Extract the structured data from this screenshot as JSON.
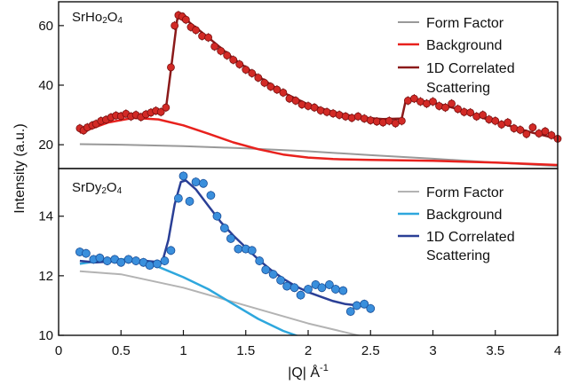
{
  "chart_data": {
    "type": "scatter",
    "xlabel_main": "|Q| Å",
    "xlabel_exp": "-1",
    "ylabel": "Intensity (a.u.)",
    "xlim": [
      0,
      4
    ],
    "x_ticks": [
      0,
      0.5,
      1,
      1.5,
      2,
      2.5,
      3,
      3.5,
      4
    ],
    "x_tick_labels": [
      "0",
      "0.5",
      "1",
      "1.5",
      "2",
      "2.5",
      "3",
      "3.5",
      "4"
    ],
    "panels": [
      {
        "label_main": "SrHo",
        "label_sub1": "2",
        "label_mid": "O",
        "label_sub2": "4",
        "ylim": [
          12,
          68
        ],
        "y_ticks": [
          20,
          40,
          60
        ],
        "y_tick_labels": [
          "20",
          "40",
          "60"
        ],
        "legend": [
          "Form Factor",
          "Background",
          "1D Correlated",
          "Scattering"
        ],
        "colors": {
          "form_factor": "#999999",
          "background": "#e8211d",
          "fit": "#8b1a1a",
          "points_fill": "#d22a26",
          "points_stroke": "#7a0f0f"
        },
        "series": [
          {
            "name": "Form Factor",
            "x": [
              0.17,
              0.5,
              1.0,
              1.5,
              2.0,
              2.5,
              3.0,
              3.5,
              4.0
            ],
            "y": [
              20.2,
              20.0,
              19.5,
              18.8,
              17.8,
              16.5,
              15.3,
              14.0,
              12.8
            ]
          },
          {
            "name": "Background",
            "x": [
              0.17,
              0.4,
              0.6,
              0.8,
              1.0,
              1.2,
              1.4,
              1.6,
              1.8,
              2.0,
              2.2,
              2.5,
              3.0,
              3.5,
              4.0
            ],
            "y": [
              24.0,
              27.5,
              29.0,
              28.5,
              26.5,
              23.7,
              20.8,
              18.5,
              16.7,
              15.7,
              15.2,
              14.9,
              14.6,
              14.0,
              13.2
            ]
          },
          {
            "name": "1D Correlated Scattering",
            "x": [
              0.17,
              0.3,
              0.5,
              0.7,
              0.8,
              0.86,
              0.9,
              0.95,
              1.0,
              1.05,
              1.2,
              1.4,
              1.6,
              1.8,
              2.0,
              2.2,
              2.4,
              2.6,
              2.75,
              2.78,
              2.85,
              3.0,
              3.2,
              3.4,
              3.6,
              3.8,
              4.0
            ],
            "y": [
              25.0,
              27.5,
              29.5,
              30.0,
              31.0,
              32.0,
              45.0,
              62.0,
              64.0,
              61.0,
              56.0,
              49.0,
              43.0,
              37.5,
              33.5,
              31.0,
              29.2,
              28.6,
              28.8,
              34.5,
              35.0,
              34.2,
              32.0,
              29.0,
              26.5,
              24.0,
              22.0
            ]
          },
          {
            "name": "data",
            "x": [
              0.17,
              0.2,
              0.23,
              0.27,
              0.3,
              0.34,
              0.38,
              0.42,
              0.46,
              0.5,
              0.54,
              0.58,
              0.62,
              0.66,
              0.7,
              0.74,
              0.78,
              0.82,
              0.86,
              0.9,
              0.93,
              0.96,
              0.99,
              1.02,
              1.06,
              1.1,
              1.15,
              1.2,
              1.25,
              1.3,
              1.35,
              1.4,
              1.45,
              1.5,
              1.55,
              1.6,
              1.65,
              1.7,
              1.75,
              1.8,
              1.85,
              1.9,
              1.95,
              2.0,
              2.05,
              2.1,
              2.15,
              2.2,
              2.25,
              2.3,
              2.35,
              2.4,
              2.45,
              2.5,
              2.55,
              2.6,
              2.65,
              2.7,
              2.75,
              2.8,
              2.85,
              2.9,
              2.95,
              3.0,
              3.05,
              3.1,
              3.15,
              3.2,
              3.25,
              3.3,
              3.35,
              3.4,
              3.45,
              3.5,
              3.55,
              3.6,
              3.65,
              3.7,
              3.75,
              3.8,
              3.85,
              3.9,
              3.95,
              4.0
            ],
            "y": [
              25.5,
              24.8,
              25.8,
              26.5,
              27.0,
              28.0,
              28.4,
              29.2,
              29.8,
              29.6,
              30.4,
              29.5,
              30.0,
              29.3,
              30.2,
              30.8,
              31.4,
              31.0,
              32.5,
              46.0,
              60.0,
              63.5,
              63.0,
              62.0,
              59.5,
              58.5,
              56.5,
              56.0,
              53.0,
              51.5,
              50.0,
              48.5,
              47.0,
              45.2,
              44.0,
              42.5,
              40.8,
              39.5,
              38.5,
              37.5,
              35.5,
              34.8,
              33.5,
              33.0,
              32.5,
              31.5,
              31.0,
              30.5,
              30.0,
              29.5,
              29.0,
              29.5,
              28.8,
              28.2,
              27.8,
              27.5,
              28.0,
              27.2,
              28.0,
              34.8,
              35.5,
              34.5,
              33.8,
              34.5,
              33.0,
              32.5,
              33.8,
              32.0,
              31.0,
              30.8,
              29.5,
              30.0,
              28.5,
              28.0,
              26.8,
              27.5,
              25.5,
              25.0,
              23.6,
              25.8,
              23.8,
              24.5,
              23.2,
              22.0
            ]
          }
        ]
      },
      {
        "label_main": "SrDy",
        "label_sub1": "2",
        "label_mid": "O",
        "label_sub2": "4",
        "ylim": [
          10,
          15.6
        ],
        "y_ticks": [
          10,
          12,
          14
        ],
        "y_tick_labels": [
          "10",
          "12",
          "14"
        ],
        "legend": [
          "Form Factor",
          "Background",
          "1D Correlated",
          "Scattering"
        ],
        "colors": {
          "form_factor": "#b3b3b3",
          "background": "#2ea7dd",
          "fit": "#2a3f96",
          "points_fill": "#3a8fdc",
          "points_stroke": "#1a4f99"
        },
        "series": [
          {
            "name": "Form Factor",
            "x": [
              0.17,
              0.5,
              1.0,
              1.5,
              2.0,
              2.5
            ],
            "y": [
              12.15,
              12.05,
              11.6,
              11.0,
              10.4,
              9.9
            ]
          },
          {
            "name": "Background",
            "x": [
              0.17,
              0.4,
              0.6,
              0.8,
              1.0,
              1.2,
              1.4,
              1.6,
              1.8,
              2.0,
              2.2,
              2.4
            ],
            "y": [
              12.4,
              12.55,
              12.55,
              12.3,
              11.95,
              11.55,
              11.05,
              10.55,
              10.15,
              9.85,
              9.7,
              9.6
            ]
          },
          {
            "name": "1D Correlated Scattering",
            "x": [
              0.17,
              0.3,
              0.5,
              0.7,
              0.83,
              0.88,
              0.93,
              0.98,
              1.02,
              1.1,
              1.2,
              1.3,
              1.4,
              1.5,
              1.6,
              1.7,
              1.8,
              1.9,
              2.0,
              2.1,
              2.2,
              2.3,
              2.4,
              2.5
            ],
            "y": [
              12.5,
              12.45,
              12.5,
              12.5,
              12.45,
              13.2,
              14.4,
              15.15,
              15.2,
              14.9,
              14.35,
              13.8,
              13.35,
              12.95,
              12.55,
              12.2,
              11.9,
              11.65,
              11.45,
              11.3,
              11.15,
              11.05,
              11.0,
              10.95
            ]
          },
          {
            "name": "data",
            "x": [
              0.17,
              0.22,
              0.28,
              0.33,
              0.39,
              0.45,
              0.5,
              0.56,
              0.62,
              0.68,
              0.73,
              0.79,
              0.85,
              0.9,
              0.96,
              1.0,
              1.05,
              1.1,
              1.16,
              1.22,
              1.27,
              1.33,
              1.38,
              1.44,
              1.5,
              1.55,
              1.61,
              1.66,
              1.72,
              1.78,
              1.83,
              1.89,
              1.94,
              2.0,
              2.06,
              2.11,
              2.17,
              2.22,
              2.28,
              2.34,
              2.39,
              2.45,
              2.5
            ],
            "y": [
              12.8,
              12.75,
              12.55,
              12.6,
              12.5,
              12.55,
              12.45,
              12.55,
              12.5,
              12.45,
              12.35,
              12.4,
              12.5,
              12.85,
              14.6,
              15.35,
              14.5,
              15.15,
              15.1,
              14.7,
              14.0,
              13.6,
              13.25,
              12.9,
              12.9,
              12.85,
              12.5,
              12.2,
              12.05,
              11.85,
              11.65,
              11.6,
              11.35,
              11.55,
              11.7,
              11.6,
              11.7,
              11.55,
              11.5,
              10.8,
              11.0,
              11.05,
              10.9
            ]
          }
        ]
      }
    ]
  }
}
